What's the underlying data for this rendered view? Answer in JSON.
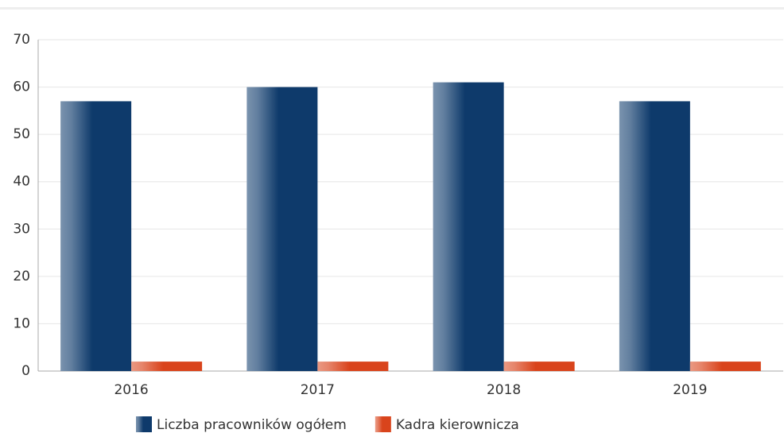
{
  "chart_data": {
    "type": "bar",
    "categories": [
      "2016",
      "2017",
      "2018",
      "2019"
    ],
    "series": [
      {
        "name": "Liczba pracowników ogółem",
        "color": "#0e3a6b",
        "values": [
          57,
          60,
          61,
          57
        ]
      },
      {
        "name": "Kadra kierownicza",
        "color": "#d9441c",
        "values": [
          2,
          2,
          2,
          2
        ]
      }
    ],
    "ylim": [
      0,
      70
    ],
    "yticks": [
      0,
      10,
      20,
      30,
      40,
      50,
      60,
      70
    ],
    "grid": true,
    "legend": "bottom"
  }
}
